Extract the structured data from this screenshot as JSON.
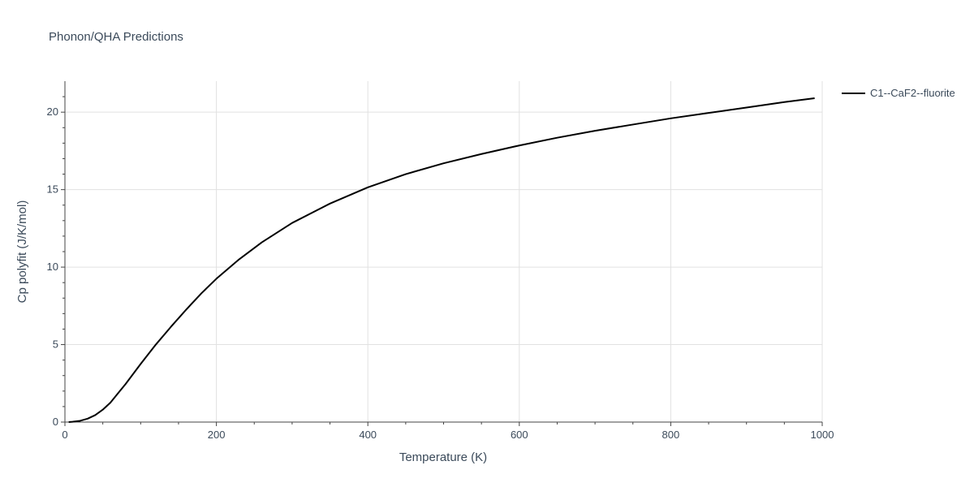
{
  "chart_data": {
    "type": "line",
    "title": "Phonon/QHA Predictions",
    "xlabel": "Temperature (K)",
    "ylabel": "Cp polyfit (J/K/mol)",
    "xlim": [
      0,
      1000
    ],
    "ylim": [
      0,
      22
    ],
    "xticks": [
      0,
      200,
      400,
      600,
      800,
      1000
    ],
    "xtick_labels": [
      "0",
      "200",
      "400",
      "600",
      "800",
      "1000"
    ],
    "yticks": [
      0,
      5,
      10,
      15,
      20
    ],
    "ytick_labels": [
      "0",
      "5",
      "10",
      "15",
      "20"
    ],
    "grid": true,
    "legend_position": "top-right",
    "series": [
      {
        "name": "C1--CaF2--fluorite",
        "color": "#000000",
        "x": [
          5,
          10,
          20,
          30,
          40,
          50,
          60,
          70,
          80,
          100,
          120,
          140,
          160,
          180,
          200,
          230,
          260,
          300,
          350,
          400,
          450,
          500,
          550,
          600,
          650,
          700,
          750,
          800,
          850,
          900,
          950,
          990
        ],
        "y": [
          0.0,
          0.02,
          0.08,
          0.22,
          0.45,
          0.8,
          1.25,
          1.85,
          2.45,
          3.75,
          5.0,
          6.15,
          7.25,
          8.3,
          9.25,
          10.5,
          11.6,
          12.85,
          14.1,
          15.15,
          16.0,
          16.7,
          17.3,
          17.85,
          18.35,
          18.8,
          19.2,
          19.6,
          19.95,
          20.3,
          20.65,
          20.9
        ]
      }
    ]
  }
}
